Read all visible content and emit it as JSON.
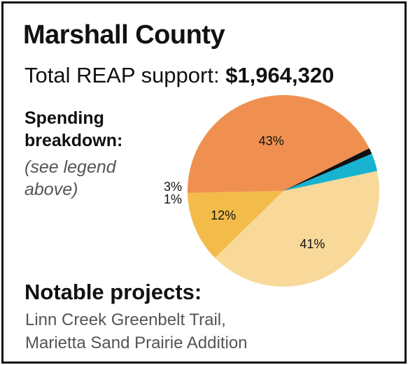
{
  "title": "Marshall County",
  "support": {
    "label": "Total REAP support:",
    "amount": "$1,964,320"
  },
  "breakdown": {
    "heading_line1": "Spending",
    "heading_line2": "breakdown:",
    "note_line1": "(see legend",
    "note_line2": "above)"
  },
  "projects": {
    "heading": "Notable projects:",
    "items": [
      "Linn Creek Greenbelt Trail,",
      "Marietta Sand Prairie Addition"
    ]
  },
  "chart_data": {
    "type": "pie",
    "values": [
      41,
      12,
      43,
      1,
      3
    ],
    "labels": [
      "41%",
      "12%",
      "43%",
      "1%",
      "3%"
    ],
    "colors": [
      "#f8d99a",
      "#f3bc4a",
      "#ef9050",
      "#111111",
      "#17b3d1"
    ]
  }
}
